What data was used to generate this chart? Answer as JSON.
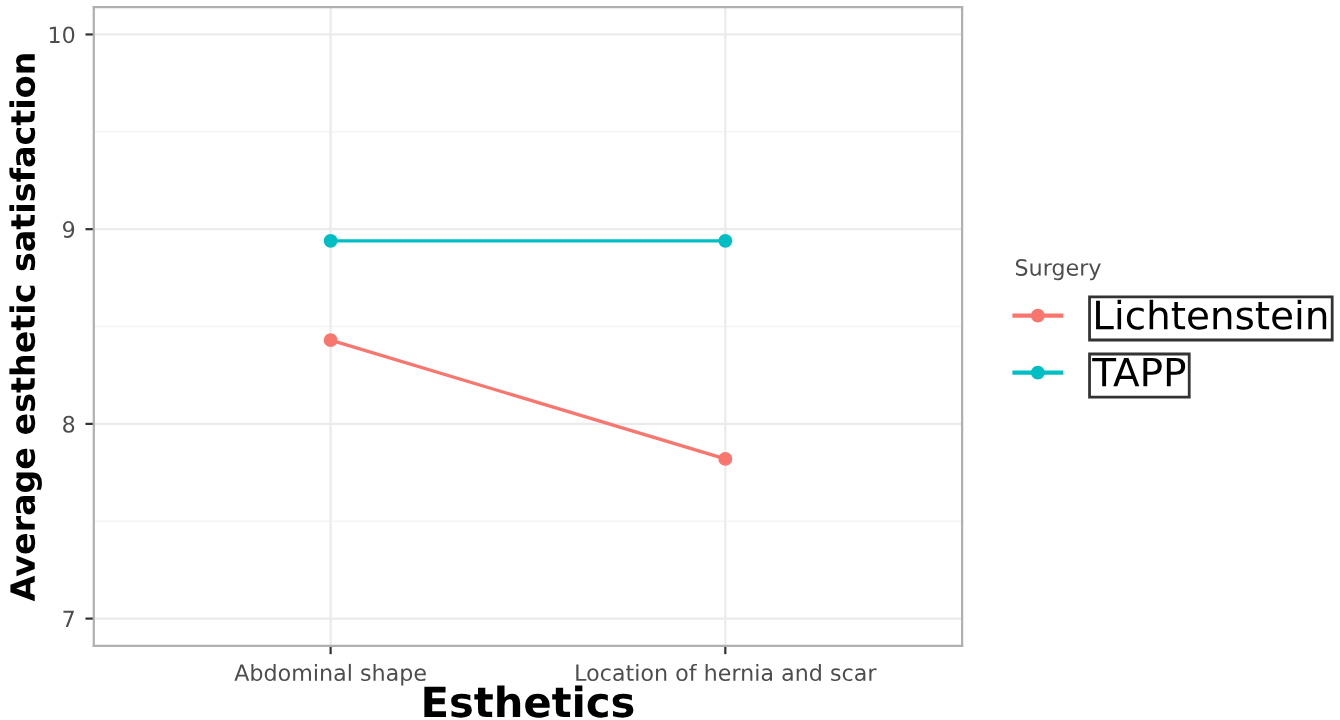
{
  "chart_data": {
    "type": "line",
    "xlabel": "Esthetics",
    "ylabel": "Average esthetic satisfaction",
    "legend_title": "Surgery",
    "categories": [
      "Abdominal shape",
      "Location of hernia and scar"
    ],
    "series": [
      {
        "name": "Lichtenstein",
        "color": "#f8766d",
        "values": [
          8.43,
          7.82
        ]
      },
      {
        "name": "TAPP",
        "color": "#00bfc4",
        "values": [
          8.94,
          8.94
        ]
      }
    ],
    "ylim": [
      6.86,
      10.14
    ],
    "yticks": [
      7,
      8,
      9,
      10
    ],
    "grid": true,
    "legend": "right",
    "marker": "circle",
    "line_style": "solid"
  }
}
